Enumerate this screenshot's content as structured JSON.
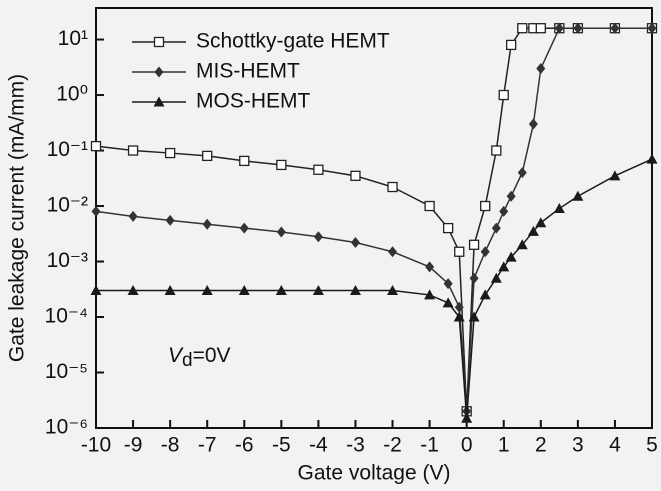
{
  "chart_data": {
    "type": "line",
    "x_label": "Gate voltage (V)",
    "y_label": "Gate leakage current (mA/mm)",
    "annotation": {
      "symbol": "V",
      "subscript": "d",
      "text": "=0V"
    },
    "x": [
      -10,
      -9,
      -8,
      -7,
      -6,
      -5,
      -4,
      -3,
      -2,
      -1,
      -0.5,
      -0.2,
      0,
      0.2,
      0.5,
      0.8,
      1,
      1.2,
      1.5,
      1.8,
      2,
      2.5,
      3,
      4,
      5
    ],
    "xlim": [
      -10,
      5
    ],
    "xticks": [
      -10,
      -9,
      -8,
      -7,
      -6,
      -5,
      -4,
      -3,
      -2,
      -1,
      0,
      1,
      2,
      3,
      4,
      5
    ],
    "ylim": [
      1e-06,
      37
    ],
    "ylog": true,
    "yticks": [
      {
        "value": 1e-06,
        "label": "10⁻⁶"
      },
      {
        "value": 1e-05,
        "label": "10⁻⁵"
      },
      {
        "value": 0.0001,
        "label": "10⁻⁴"
      },
      {
        "value": 0.001,
        "label": "10⁻³"
      },
      {
        "value": 0.01,
        "label": "10⁻²"
      },
      {
        "value": 0.1,
        "label": "10⁻¹"
      },
      {
        "value": 1,
        "label": "10⁰"
      },
      {
        "value": 10,
        "label": "10¹"
      }
    ],
    "legend": "upper left",
    "series": [
      {
        "name": "Schottky-gate HEMT",
        "color": "#222222",
        "marker": "square",
        "values": [
          0.12,
          0.1,
          0.09,
          0.08,
          0.065,
          0.055,
          0.045,
          0.035,
          0.022,
          0.01,
          0.004,
          0.0015,
          2e-06,
          0.002,
          0.01,
          0.1,
          1,
          8,
          16,
          16,
          16,
          16,
          16,
          16,
          16
        ]
      },
      {
        "name": "MIS-HEMT",
        "color": "#333333",
        "marker": "diamond",
        "values": [
          0.008,
          0.0065,
          0.0055,
          0.0047,
          0.004,
          0.0034,
          0.0028,
          0.0022,
          0.0015,
          0.0008,
          0.0004,
          0.00015,
          2e-06,
          0.0005,
          0.0015,
          0.004,
          0.008,
          0.015,
          0.04,
          0.3,
          3,
          16,
          16,
          16,
          16
        ]
      },
      {
        "name": "MOS-HEMT",
        "color": "#1a1a1a",
        "marker": "triangle",
        "values": [
          0.0003,
          0.0003,
          0.0003,
          0.0003,
          0.0003,
          0.0003,
          0.0003,
          0.0003,
          0.0003,
          0.00025,
          0.00018,
          0.0001,
          1.5e-06,
          0.0001,
          0.00025,
          0.0005,
          0.0008,
          0.0012,
          0.002,
          0.0035,
          0.005,
          0.009,
          0.015,
          0.035,
          0.07
        ]
      }
    ]
  }
}
